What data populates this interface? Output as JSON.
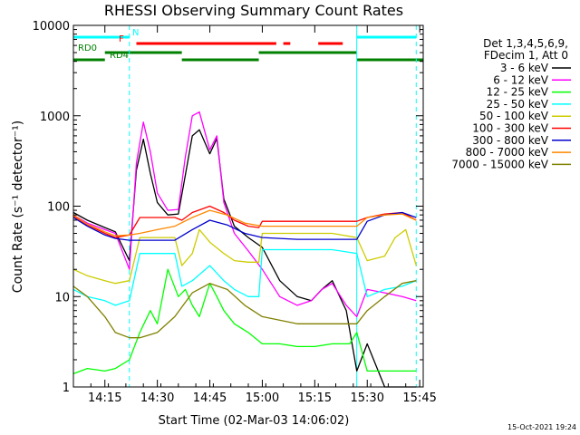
{
  "chart_data": {
    "type": "line",
    "title": "RHESSI Observing Summary Count Rates",
    "xlabel": "Start Time (02-Mar-03 14:06:02)",
    "ylabel": "Count Rate (s⁻¹ detector⁻¹)",
    "y_scale": "log",
    "ylim": [
      1,
      10000
    ],
    "xlim": [
      "14:06",
      "15:46"
    ],
    "x_ticks": [
      "14:15",
      "14:30",
      "14:45",
      "15:00",
      "15:15",
      "15:30",
      "15:45"
    ],
    "y_ticks": [
      "1",
      "10",
      "100",
      "1000",
      "10000"
    ],
    "grid": false,
    "legend_position": "right",
    "legend_header": [
      "Det 1,3,4,5,6,9,",
      "FDecim 1, Att 0"
    ],
    "footer_stamp": "15-Oct-2021 19:24",
    "state_bars": [
      {
        "label": "N",
        "color": "#00ffff",
        "segments": [
          [
            "14:06",
            "14:22"
          ],
          [
            "15:27",
            "15:44"
          ]
        ]
      },
      {
        "label": "F",
        "color": "#ff0000",
        "segments": [
          [
            "14:24",
            "15:04"
          ],
          [
            "15:06",
            "15:08"
          ],
          [
            "15:16",
            "15:23"
          ]
        ]
      },
      {
        "label": "RD0",
        "color": "#008000",
        "segments": [
          [
            "14:15",
            "14:37"
          ],
          [
            "14:59",
            "15:27"
          ]
        ]
      },
      {
        "label": "RD4",
        "color": "#008000",
        "segments": [
          [
            "14:06",
            "14:15"
          ],
          [
            "14:37",
            "14:59"
          ],
          [
            "15:27",
            "15:46"
          ]
        ]
      }
    ],
    "vertical_markers": [
      {
        "time": "14:06",
        "style": "solid"
      },
      {
        "time": "14:22",
        "style": "dashed"
      },
      {
        "time": "15:27",
        "style": "solid"
      },
      {
        "time": "15:44",
        "style": "dashed"
      }
    ],
    "series": [
      {
        "name": "3 - 6 keV",
        "color": "#000000",
        "x": [
          "14:06",
          "14:10",
          "14:15",
          "14:18",
          "14:22",
          "14:24",
          "14:26",
          "14:28",
          "14:30",
          "14:33",
          "14:36",
          "14:38",
          "14:40",
          "14:42",
          "14:45",
          "14:47",
          "14:49",
          "14:52",
          "14:56",
          "15:00",
          "15:05",
          "15:10",
          "15:14",
          "15:17",
          "15:20",
          "15:24",
          "15:27",
          "15:30",
          "15:35",
          "15:40",
          "15:44"
        ],
        "values": [
          85,
          70,
          58,
          52,
          25,
          250,
          550,
          230,
          110,
          80,
          82,
          220,
          600,
          700,
          380,
          560,
          120,
          60,
          45,
          35,
          15,
          10,
          9,
          12,
          15,
          7,
          1.5,
          3,
          1,
          1,
          1
        ]
      },
      {
        "name": "6 - 12 keV",
        "color": "#ff00ff",
        "x": [
          "14:06",
          "14:10",
          "14:15",
          "14:18",
          "14:22",
          "14:24",
          "14:26",
          "14:28",
          "14:30",
          "14:33",
          "14:36",
          "14:38",
          "14:40",
          "14:42",
          "14:45",
          "14:47",
          "14:49",
          "14:52",
          "14:56",
          "15:00",
          "15:05",
          "15:10",
          "15:14",
          "15:17",
          "15:20",
          "15:24",
          "15:27",
          "15:30",
          "15:35",
          "15:40",
          "15:44"
        ],
        "values": [
          80,
          65,
          55,
          50,
          20,
          300,
          850,
          400,
          140,
          90,
          92,
          350,
          1000,
          1100,
          420,
          600,
          110,
          50,
          32,
          20,
          10,
          8,
          9,
          12,
          14,
          8,
          6,
          12,
          11,
          10,
          9
        ]
      },
      {
        "name": "12 - 25 keV",
        "color": "#00ff00",
        "x": [
          "14:06",
          "14:10",
          "14:15",
          "14:18",
          "14:22",
          "14:25",
          "14:28",
          "14:30",
          "14:33",
          "14:36",
          "14:38",
          "14:40",
          "14:42",
          "14:45",
          "14:47",
          "14:49",
          "14:52",
          "14:56",
          "15:00",
          "15:05",
          "15:10",
          "15:15",
          "15:20",
          "15:25",
          "15:27",
          "15:30",
          "15:35",
          "15:40",
          "15:44"
        ],
        "values": [
          1.4,
          1.6,
          1.5,
          1.6,
          2,
          4,
          7,
          5,
          20,
          10,
          12,
          8,
          6,
          14,
          10,
          7,
          5,
          4,
          3,
          3,
          2.8,
          2.8,
          3,
          3,
          4,
          1.5,
          1.5,
          1.5,
          1.5
        ]
      },
      {
        "name": "25 - 50 keV",
        "color": "#00ffff",
        "x": [
          "14:06",
          "14:10",
          "14:15",
          "14:18",
          "14:22",
          "14:25",
          "14:30",
          "14:35",
          "14:37",
          "14:40",
          "14:45",
          "14:49",
          "14:52",
          "14:56",
          "14:59",
          "15:00",
          "15:10",
          "15:20",
          "15:27",
          "15:30",
          "15:35",
          "15:40",
          "15:44"
        ],
        "values": [
          12,
          10,
          9,
          8,
          9,
          30,
          30,
          30,
          13,
          15,
          22,
          15,
          12,
          10,
          10,
          33,
          33,
          33,
          30,
          10,
          12,
          13,
          15
        ]
      },
      {
        "name": "50 - 100 keV",
        "color": "#cccc00",
        "x": [
          "14:06",
          "14:10",
          "14:15",
          "14:18",
          "14:22",
          "14:25",
          "14:30",
          "14:35",
          "14:37",
          "14:40",
          "14:42",
          "14:45",
          "14:49",
          "14:52",
          "14:56",
          "14:59",
          "15:00",
          "15:10",
          "15:20",
          "15:27",
          "15:30",
          "15:35",
          "15:38",
          "15:41",
          "15:44"
        ],
        "values": [
          20,
          17,
          15,
          14,
          15,
          45,
          45,
          45,
          22,
          30,
          55,
          40,
          30,
          25,
          24,
          24,
          50,
          50,
          50,
          45,
          25,
          28,
          45,
          55,
          22
        ]
      },
      {
        "name": "100 - 300 keV",
        "color": "#ff0000",
        "x": [
          "14:06",
          "14:10",
          "14:15",
          "14:18",
          "14:22",
          "14:25",
          "14:30",
          "14:35",
          "14:37",
          "14:40",
          "14:45",
          "14:49",
          "14:52",
          "14:56",
          "14:59",
          "15:00",
          "15:10",
          "15:20",
          "15:27",
          "15:30",
          "15:35",
          "15:40",
          "15:44"
        ],
        "values": [
          78,
          62,
          50,
          45,
          48,
          75,
          75,
          75,
          70,
          85,
          100,
          85,
          70,
          60,
          58,
          68,
          68,
          68,
          68,
          75,
          82,
          85,
          70
        ]
      },
      {
        "name": "300 - 800 keV",
        "color": "#0000cc",
        "x": [
          "14:06",
          "14:10",
          "14:15",
          "14:18",
          "14:22",
          "14:25",
          "14:30",
          "14:35",
          "14:40",
          "14:45",
          "14:50",
          "14:55",
          "15:00",
          "15:10",
          "15:20",
          "15:27",
          "15:30",
          "15:35",
          "15:40",
          "15:44"
        ],
        "values": [
          75,
          60,
          48,
          44,
          42,
          42,
          42,
          42,
          55,
          70,
          62,
          50,
          45,
          43,
          43,
          43,
          68,
          80,
          85,
          75
        ]
      },
      {
        "name": "800 - 7000 keV",
        "color": "#ff8800",
        "x": [
          "14:06",
          "14:10",
          "14:15",
          "14:18",
          "14:22",
          "14:25",
          "14:30",
          "14:35",
          "14:40",
          "14:45",
          "14:50",
          "14:55",
          "15:00",
          "15:10",
          "15:20",
          "15:27",
          "15:30",
          "15:35",
          "15:40",
          "15:44"
        ],
        "values": [
          80,
          63,
          52,
          47,
          48,
          50,
          55,
          60,
          75,
          90,
          80,
          65,
          60,
          60,
          60,
          60,
          75,
          80,
          82,
          70
        ]
      },
      {
        "name": "7000 - 15000 keV",
        "color": "#808000",
        "x": [
          "14:06",
          "14:10",
          "14:15",
          "14:18",
          "14:22",
          "14:25",
          "14:30",
          "14:35",
          "14:40",
          "14:45",
          "14:50",
          "14:55",
          "15:00",
          "15:10",
          "15:20",
          "15:27",
          "15:30",
          "15:35",
          "15:40",
          "15:44"
        ],
        "values": [
          13,
          10,
          6,
          4,
          3.5,
          3.5,
          4,
          6,
          11,
          14,
          12,
          8,
          6,
          5,
          5,
          5,
          7,
          10,
          14,
          15
        ]
      }
    ]
  }
}
